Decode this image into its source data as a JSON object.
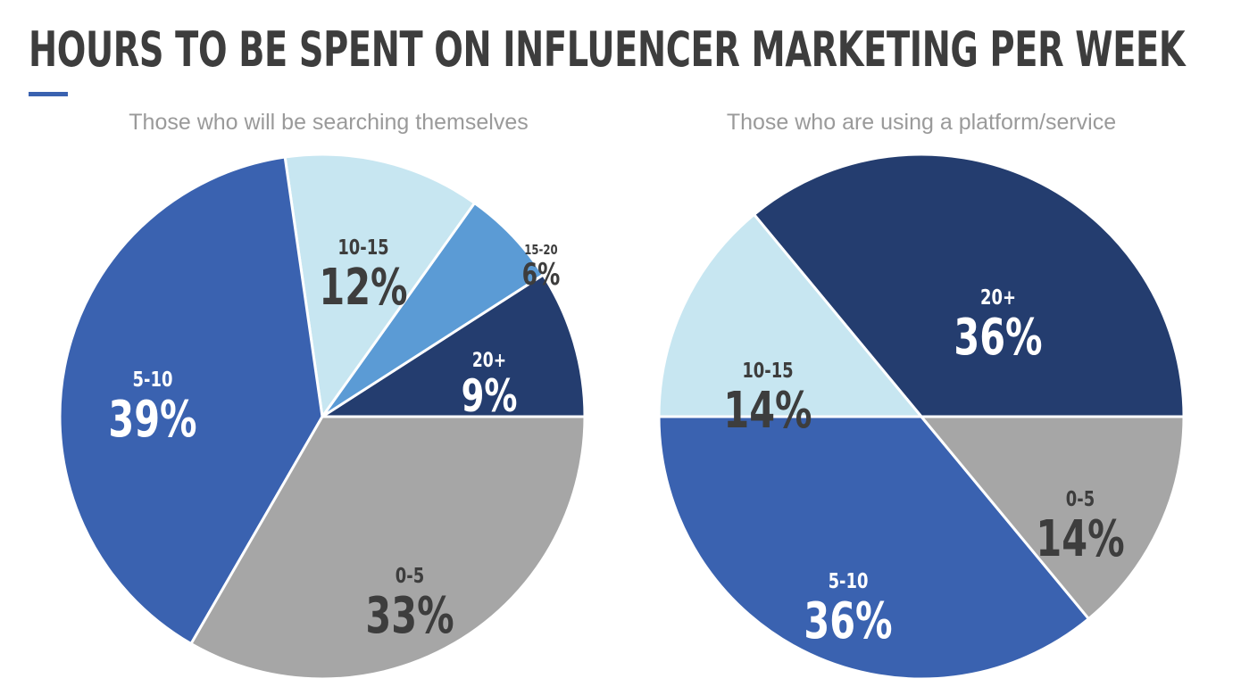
{
  "title": "HOURS TO BE SPENT ON INFLUENCER MARKETING PER WEEK",
  "colors": {
    "title": "#3d3d3d",
    "accent": "#3a62b0",
    "subtitle": "#9a9a9a",
    "label_dark": "#3d3d3d",
    "label_light": "#ffffff"
  },
  "chart_data": [
    {
      "type": "pie",
      "title": "Those who will be searching themselves",
      "series": [
        {
          "label": "20+",
          "percent_label": "9%",
          "value": 9,
          "color": "#243d6f"
        },
        {
          "label": "15-20",
          "percent_label": "6%",
          "value": 6,
          "color": "#5b9bd5"
        },
        {
          "label": "10-15",
          "percent_label": "12%",
          "value": 12,
          "color": "#c7e6f1"
        },
        {
          "label": "5-10",
          "percent_label": "39%",
          "value": 39,
          "color": "#3a62b0"
        },
        {
          "label": "0-5",
          "percent_label": "33%",
          "value": 33,
          "color": "#a6a6a6"
        }
      ]
    },
    {
      "type": "pie",
      "title": "Those who are using a platform/service",
      "series": [
        {
          "label": "20+",
          "percent_label": "36%",
          "value": 36,
          "color": "#243d6f"
        },
        {
          "label": "10-15",
          "percent_label": "14%",
          "value": 14,
          "color": "#c7e6f1"
        },
        {
          "label": "5-10",
          "percent_label": "36%",
          "value": 36,
          "color": "#3a62b0"
        },
        {
          "label": "0-5",
          "percent_label": "14%",
          "value": 14,
          "color": "#a6a6a6"
        }
      ]
    }
  ]
}
